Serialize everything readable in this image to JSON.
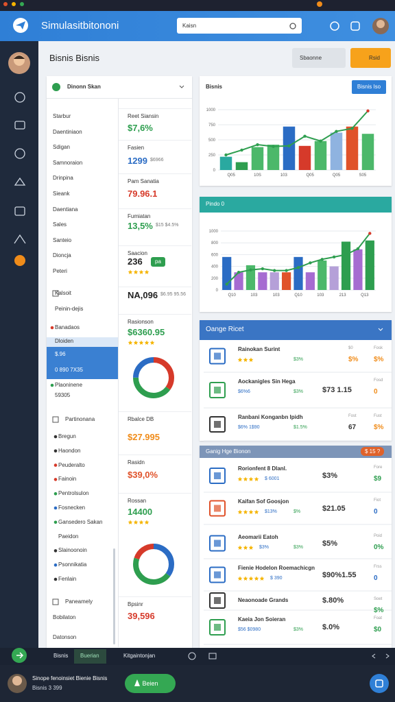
{
  "window": {
    "title": "Simulasitbitononi",
    "search": "Kaisn"
  },
  "page": {
    "title": "Bisnis Bisnis",
    "buttons": [
      "Sbaonne",
      "Rsid"
    ]
  },
  "left_panel": {
    "title": "Dinonn Skan",
    "menu": [
      "Starbur",
      "Daentiniaon",
      "Sdigan",
      "Samnoraion",
      "Drinpina",
      "Sieank",
      "Daentiana",
      "Sales",
      "Santeio",
      "Dioncja",
      "Peteri"
    ],
    "accounts": [
      {
        "text": "Kalsoit"
      },
      {
        "text": "Peinin-dejis"
      },
      {
        "text": "Banadaos",
        "dot": "#d63a2a"
      },
      {
        "text": "Dloiden",
        "dot": "#d63a2a"
      },
      {
        "text": "$.96"
      },
      {
        "text": "0 890 7X35"
      },
      {
        "text": "Plaoninene",
        "dot": "#2e9e4f"
      },
      {
        "text": "59305"
      }
    ],
    "group_title": "Partinonana",
    "group": [
      {
        "text": "Bregun",
        "dot": "#333"
      },
      {
        "text": "Haondon",
        "dot": "#333"
      },
      {
        "text": "Peuderalto",
        "dot": "#d63a2a"
      },
      {
        "text": "Fainoin",
        "dot": "#d63a2a"
      },
      {
        "text": "Pentrolsulon",
        "dot": "#2e9e4f"
      },
      {
        "text": "Fosnecken",
        "dot": "#2b6cc4"
      },
      {
        "text": "Gansedero Sakan",
        "dot": "#2e9e4f"
      },
      {
        "text": "Paeidon"
      },
      {
        "text": "Slainoonoin",
        "dot": "#333"
      },
      {
        "text": "Psonnikatia",
        "dot": "#2b6cc4"
      },
      {
        "text": "Fenlain",
        "dot": "#333"
      }
    ],
    "footer": [
      "Paneamely",
      "Bobilaton",
      "Datonson"
    ]
  },
  "middle": [
    {
      "label": "Reet Siansin",
      "value": "$7,6%",
      "color": "#2e9e4f"
    },
    {
      "label": "Fasien",
      "value": "1299",
      "color": "#2b6cc4",
      "sub": "$6966"
    },
    {
      "label": "Pam Sanatia",
      "value": "79.96.1",
      "color": "#d63a2a"
    },
    {
      "label": "Fumiatan",
      "value": "13,5%",
      "color": "#2e9e4f",
      "sub": "$15 $4.5%"
    },
    {
      "label": "Saacion",
      "value": "236",
      "color": "#222",
      "badge": "pa",
      "rating": 4
    },
    {
      "value": "NA,096",
      "color": "#222",
      "sub": "$6.95 95.56"
    },
    {
      "label": "Rasionson",
      "value": "$6360.95",
      "color": "#2e9e4f",
      "rating": 5
    },
    {
      "donut": [
        {
          "value": 35,
          "color": "#d63a2a"
        },
        {
          "value": 40,
          "color": "#2e9e4f"
        },
        {
          "value": 25,
          "color": "#2b6cc4"
        }
      ]
    },
    {
      "label": "Rbalce DB",
      "value": "$27.995",
      "color": "#f08c1a"
    },
    {
      "label": "Rasidn",
      "value": "$39,0%",
      "color": "#e0522a"
    },
    {
      "label": "Rossan",
      "value": "14400",
      "color": "#2e9e4f",
      "rating": 4
    },
    {
      "donut": [
        {
          "value": 35,
          "color": "#2b6cc4"
        },
        {
          "value": 45,
          "color": "#2e9e4f"
        },
        {
          "value": 20,
          "color": "#d63a2a"
        }
      ]
    },
    {
      "label": "Bpsinr",
      "value": "39,596",
      "color": "#d63a2a"
    }
  ],
  "chart1": {
    "title": "Bisnis",
    "button": "Bisnis Iso",
    "categories": [
      "Q05",
      "10S",
      "103",
      "Q05",
      "Q05",
      "S05"
    ],
    "ylim": [
      0,
      1000
    ],
    "yticks": [
      0,
      250,
      500,
      750,
      1000
    ],
    "bars": [
      220,
      130,
      380,
      420,
      720,
      400,
      480,
      620,
      720,
      600
    ],
    "bar_colors": [
      "#2aa9a0",
      "#2e9e4f",
      "#4cb86a",
      "#4cb86a",
      "#2b6cc4",
      "#d63a2a",
      "#4cb86a",
      "#8fb3e0",
      "#e0522a",
      "#4cb86a"
    ],
    "line": [
      250,
      330,
      420,
      390,
      400,
      560,
      480,
      640,
      690,
      980
    ],
    "line_color": "#2e9e4f"
  },
  "chart2": {
    "title": "Pindo 0",
    "categories": [
      "Q10",
      "103",
      "103",
      "Q10",
      "103",
      "213",
      "Q13"
    ],
    "ylim": [
      0,
      1000
    ],
    "yticks": [
      0,
      200,
      400,
      600,
      800,
      1000
    ],
    "bars": [
      560,
      300,
      420,
      300,
      300,
      300,
      560,
      300,
      500,
      400,
      820,
      690,
      840
    ],
    "bar_colors": [
      "#2b6cc4",
      "#a66cd1",
      "#4cb86a",
      "#a66cd1",
      "#b5a0d8",
      "#e0522a",
      "#2b6cc4",
      "#a66cd1",
      "#4cb86a",
      "#b5a0d8",
      "#2e9e4f",
      "#a66cd1",
      "#2e9e4f"
    ],
    "line": [
      100,
      300,
      340,
      360,
      330,
      330,
      380,
      460,
      520,
      560,
      600,
      700,
      960
    ],
    "line_color": "#2e9e4f"
  },
  "list1": {
    "title": "Oange Ricet",
    "rows": [
      {
        "icon_color": "#2b6cc4",
        "title": "Rainokan Surint",
        "rating": 3,
        "sub2": "$3%",
        "right1": {
          "label": "$0",
          "value": "$%",
          "color": "#f08c1a"
        },
        "right2": {
          "label": "Fosk",
          "value": "$%",
          "color": "#f08c1a"
        }
      },
      {
        "icon_color": "#2e9e4f",
        "title": "Aockanigles Sin Hega",
        "sub": "$6%6",
        "sub2": "$3%",
        "amount": "$73 1.15",
        "right2": {
          "label": "Fosd",
          "value": "0",
          "color": "#f08c1a"
        }
      },
      {
        "icon_color": "#333",
        "title": "Ranbani Konganbn Ipidh",
        "sub": "$6% 1$90",
        "sub2": "$1.5%",
        "right1": {
          "label": "Fost",
          "value": "67",
          "color": "#333"
        },
        "right2": {
          "label": "Fust",
          "value": "$%",
          "color": "#f08c1a"
        }
      }
    ]
  },
  "list2": {
    "title": "Ganig Hge Bionon",
    "badge": "$ 15 ?",
    "rows": [
      {
        "icon_color": "#2b6cc4",
        "title": "Rorionfent 8 Dlanl.",
        "rating": 4,
        "sub": "$ 6001",
        "amount": "$3%",
        "right2": {
          "label": "Fore",
          "value": "$9",
          "color": "#2e9e4f"
        }
      },
      {
        "icon_color": "#e0522a",
        "title": "Kaifan Sof Goosjon",
        "rating": 4,
        "sub": "$13%",
        "sub2": "$%",
        "amount": "$21.05",
        "right2": {
          "label": "Fiot",
          "value": "0",
          "color": "#2b6cc4"
        }
      },
      {
        "icon_color": "#2b6cc4",
        "title": "Aeomarii Eatoh",
        "rating": 3,
        "sub": "$3%",
        "sub2": "$3%",
        "amount": "$5%",
        "right2": {
          "label": "Poid",
          "value": "0%",
          "color": "#2e9e4f"
        }
      },
      {
        "icon_color": "#2b6cc4",
        "title": "Fienie Hodelon Roemachicgn",
        "rating": 5,
        "sub": "$ 390",
        "amount": "$90%1.55",
        "right2": {
          "label": "Frss",
          "value": "0",
          "color": "#2b6cc4"
        }
      },
      {
        "icon_color": "#333",
        "title": "Neaonoade Grands",
        "amount": "$.80%",
        "right2": {
          "label": "Soet",
          "value": "$%",
          "color": "#2e9e4f"
        }
      },
      {
        "icon_color": "#2e9e4f",
        "title": "Kaeia Jon Soieran",
        "sub": "$56 $0980",
        "sub2": "$3%",
        "amount": "$.0%",
        "right2": {
          "label": "Foat",
          "value": "$0",
          "color": "#2e9e4f"
        }
      }
    ]
  },
  "bottom": {
    "tabs": [
      "Bisnis",
      "Buerian",
      "Kitgaintonjan"
    ]
  },
  "footer": {
    "name": "Sinope fenoinsiet Bienie Bisnis",
    "sub": "Bisnis 3 399",
    "button": "Beien"
  }
}
